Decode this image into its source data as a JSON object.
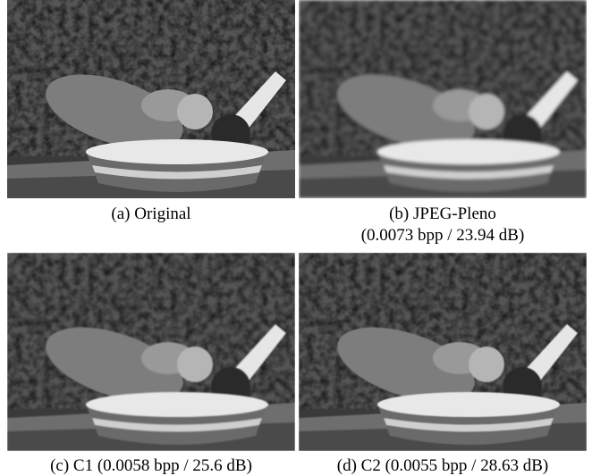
{
  "panels": [
    {
      "caption": "(a) Original"
    },
    {
      "caption": "(b) JPEG-Pleno",
      "detail": "(0.0073 bpp / 23.94 dB)"
    },
    {
      "caption": "(c) C1 (0.0058 bpp / 25.6 dB)"
    },
    {
      "caption": "(d) C2 (0.0055 bpp / 28.63 dB)"
    }
  ]
}
